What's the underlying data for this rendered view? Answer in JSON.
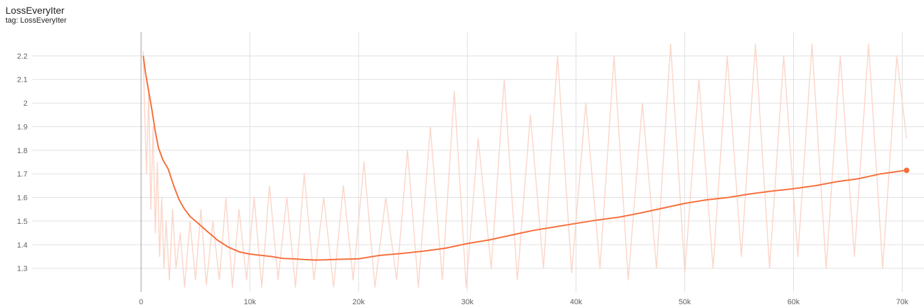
{
  "card": {
    "title": "LossEveryIter",
    "tag": "tag: LossEveryIter"
  },
  "colors": {
    "smoothed": "#f76e3b",
    "raw": "#fbd3c4",
    "grid": "#e0e0e0",
    "axis": "#9e9e9e"
  },
  "chart_data": {
    "type": "line",
    "title": "LossEveryIter",
    "xlabel": "",
    "ylabel": "",
    "xlim": [
      -10000,
      72000
    ],
    "ylim": [
      1.2,
      2.3
    ],
    "x_ticks": [
      0,
      10000,
      20000,
      30000,
      40000,
      50000,
      60000,
      70000
    ],
    "x_tick_labels": [
      "0",
      "10k",
      "20k",
      "30k",
      "40k",
      "50k",
      "60k",
      "70k"
    ],
    "y_ticks": [
      1.3,
      1.4,
      1.5,
      1.6,
      1.7,
      1.8,
      1.9,
      2.0,
      2.1,
      2.2
    ],
    "y_tick_labels": [
      "1.3",
      "1.4",
      "1.5",
      "1.6",
      "1.7",
      "1.8",
      "1.9",
      "2",
      "2.1",
      "2.2"
    ],
    "grid": true,
    "series": [
      {
        "style": "smoothed",
        "x": [
          200,
          400,
          700,
          1000,
          1300,
          1600,
          2000,
          2500,
          3000,
          3500,
          4000,
          4500,
          5000,
          5500,
          6000,
          7000,
          8000,
          9000,
          10000,
          11000,
          12000,
          13000,
          14000,
          15000,
          16000,
          17000,
          18000,
          20000,
          22000,
          24000,
          26000,
          28000,
          30000,
          32000,
          34000,
          36000,
          38000,
          40000,
          42000,
          44000,
          46000,
          48000,
          50000,
          52000,
          54000,
          56000,
          58000,
          60000,
          62000,
          64000,
          66000,
          68000,
          70000,
          70400
        ],
        "y": [
          2.2,
          2.13,
          2.05,
          1.97,
          1.88,
          1.81,
          1.76,
          1.72,
          1.65,
          1.59,
          1.55,
          1.52,
          1.5,
          1.48,
          1.46,
          1.42,
          1.39,
          1.37,
          1.36,
          1.355,
          1.35,
          1.342,
          1.34,
          1.337,
          1.335,
          1.336,
          1.338,
          1.34,
          1.355,
          1.363,
          1.373,
          1.385,
          1.405,
          1.42,
          1.44,
          1.46,
          1.475,
          1.49,
          1.505,
          1.517,
          1.535,
          1.555,
          1.575,
          1.59,
          1.6,
          1.615,
          1.627,
          1.637,
          1.65,
          1.667,
          1.68,
          1.7,
          1.713,
          1.715
        ]
      },
      {
        "style": "raw",
        "x": [
          200,
          300,
          500,
          700,
          900,
          1100,
          1300,
          1500,
          1700,
          1900,
          2100,
          2300,
          2600,
          2900,
          3200,
          3600,
          4000,
          4500,
          5000,
          5500,
          6000,
          6600,
          7200,
          7800,
          8400,
          9000,
          9700,
          10400,
          11100,
          11800,
          12600,
          13400,
          14200,
          15000,
          15900,
          16800,
          17700,
          18600,
          19500,
          20500,
          21500,
          22500,
          23500,
          24500,
          25500,
          26600,
          27700,
          28800,
          29900,
          31000,
          32200,
          33400,
          34600,
          35800,
          37000,
          38300,
          39600,
          40900,
          42200,
          43500,
          44800,
          46100,
          47400,
          48700,
          50000,
          51300,
          52600,
          53900,
          55200,
          56500,
          57800,
          59100,
          60400,
          61700,
          63000,
          64300,
          65600,
          66900,
          68200,
          69500,
          70400
        ],
        "y": [
          2.22,
          2.0,
          1.7,
          2.05,
          1.55,
          1.9,
          1.45,
          1.75,
          1.35,
          1.6,
          1.3,
          1.5,
          1.25,
          1.55,
          1.3,
          1.45,
          1.22,
          1.5,
          1.25,
          1.55,
          1.23,
          1.5,
          1.25,
          1.6,
          1.22,
          1.55,
          1.25,
          1.6,
          1.22,
          1.65,
          1.25,
          1.6,
          1.22,
          1.7,
          1.25,
          1.6,
          1.22,
          1.65,
          1.25,
          1.75,
          1.22,
          1.6,
          1.25,
          1.8,
          1.22,
          1.9,
          1.25,
          2.05,
          1.22,
          1.85,
          1.3,
          2.1,
          1.25,
          1.95,
          1.3,
          2.2,
          1.28,
          2.0,
          1.3,
          2.2,
          1.25,
          2.0,
          1.3,
          2.25,
          1.28,
          2.1,
          1.3,
          2.2,
          1.35,
          2.25,
          1.3,
          2.2,
          1.35,
          2.25,
          1.3,
          2.2,
          1.35,
          2.25,
          1.3,
          2.2,
          1.85
        ]
      }
    ]
  }
}
